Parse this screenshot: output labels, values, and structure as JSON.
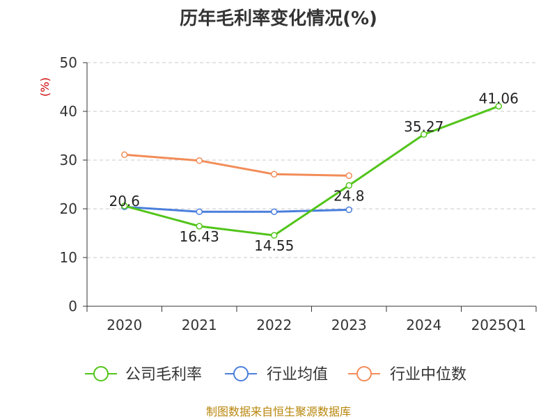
{
  "chart_data": {
    "type": "line",
    "title": "历年毛利率变化情况(%)",
    "ylabel": "(%)",
    "ylim": [
      0,
      50
    ],
    "yticks": [
      0,
      10,
      20,
      30,
      40,
      50
    ],
    "categories": [
      "2020",
      "2021",
      "2022",
      "2023",
      "2024",
      "2025Q1"
    ],
    "grid": true,
    "legend_position": "bottom",
    "series": [
      {
        "name": "公司毛利率",
        "color": "#52c41a",
        "values": [
          20.6,
          16.43,
          14.55,
          24.8,
          35.27,
          41.06
        ],
        "labels": [
          "20.6",
          "16.43",
          "14.55",
          "24.8",
          "35.27",
          "41.06"
        ]
      },
      {
        "name": "行业均值",
        "color": "#4a7fdc",
        "values": [
          20.4,
          19.4,
          19.4,
          19.8,
          null,
          null
        ]
      },
      {
        "name": "行业中位数",
        "color": "#f28c58",
        "values": [
          31.1,
          29.9,
          27.1,
          26.8,
          null,
          null
        ]
      }
    ]
  },
  "footer": "制图数据来自恒生聚源数据库"
}
